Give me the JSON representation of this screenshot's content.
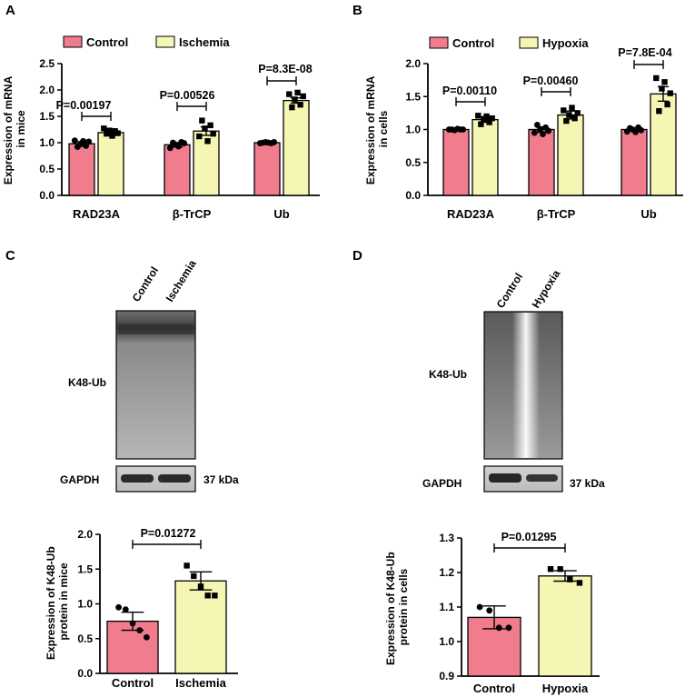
{
  "colors": {
    "control": "#F07C8E",
    "treated_ischemia": "#F5F5B4",
    "treated_hypoxia": "#F5F5B4",
    "axis": "#000000"
  },
  "chart_data": [
    {
      "panel": "A",
      "type": "bar",
      "ylabel_lines": [
        "Expression of mRNA",
        "in mice"
      ],
      "ylim": [
        0,
        2.5
      ],
      "yticks": [
        "0.0",
        "0.5",
        "1.0",
        "1.5",
        "2.0",
        "2.5"
      ],
      "categories": [
        "RAD23A",
        "β-TrCP",
        "Ub"
      ],
      "legend": [
        "Control",
        "Ischemia"
      ],
      "series": [
        {
          "name": "Control",
          "values": [
            0.98,
            0.96,
            1.0
          ],
          "errors": [
            0.04,
            0.04,
            0.01
          ],
          "points": [
            [
              1.04,
              0.92,
              0.97,
              1.03,
              0.94,
              1.02
            ],
            [
              0.9,
              1.0,
              0.96,
              0.93,
              1.01,
              0.99
            ],
            [
              0.99,
              1.0,
              1.01,
              1.0,
              0.99,
              1.01
            ]
          ]
        },
        {
          "name": "Ischemia",
          "values": [
            1.19,
            1.22,
            1.8
          ],
          "errors": [
            0.03,
            0.08,
            0.05
          ],
          "points": [
            [
              1.27,
              1.17,
              1.23,
              1.13,
              1.22,
              1.18
            ],
            [
              1.12,
              1.42,
              1.27,
              1.03,
              1.33,
              1.17
            ],
            [
              1.92,
              1.67,
              1.82,
              1.95,
              1.72,
              1.88
            ]
          ]
        }
      ],
      "pvalues": [
        "P=0.00197",
        "P=0.00526",
        "P=8.3E-08"
      ]
    },
    {
      "panel": "B",
      "type": "bar",
      "ylabel_lines": [
        "Expression of mRNA",
        "in cells"
      ],
      "ylim": [
        0,
        2.0
      ],
      "yticks": [
        "0.0",
        "0.5",
        "1.0",
        "1.5",
        "2.0"
      ],
      "categories": [
        "RAD23A",
        "β-TrCP",
        "Ub"
      ],
      "legend": [
        "Control",
        "Hypoxia"
      ],
      "series": [
        {
          "name": "Control",
          "values": [
            1.0,
            1.0,
            1.0
          ],
          "errors": [
            0.01,
            0.04,
            0.02
          ],
          "points": [
            [
              1.0,
              1.0,
              0.99,
              1.01,
              1.0,
              1.0
            ],
            [
              0.95,
              1.07,
              1.0,
              0.93,
              1.03,
              0.98
            ],
            [
              0.97,
              1.02,
              1.0,
              0.96,
              1.03,
              0.99
            ]
          ]
        },
        {
          "name": "Hypoxia",
          "values": [
            1.15,
            1.22,
            1.54
          ],
          "errors": [
            0.04,
            0.06,
            0.11
          ],
          "points": [
            [
              1.21,
              1.08,
              1.16,
              1.2,
              1.11,
              1.17
            ],
            [
              1.29,
              1.13,
              1.22,
              1.33,
              1.17,
              1.25
            ],
            [
              1.78,
              1.28,
              1.62,
              1.72,
              1.38,
              1.55
            ]
          ]
        }
      ],
      "pvalues": [
        "P=0.00110",
        "P=0.00460",
        "P=7.8E-04"
      ]
    },
    {
      "panel": "C",
      "type": "bar",
      "ylabel_lines": [
        "Expression of K48-Ub",
        "protein in mice"
      ],
      "ylim": [
        0,
        2.0
      ],
      "yticks": [
        "0.0",
        "0.5",
        "1.0",
        "1.5",
        "2.0"
      ],
      "categories": [
        "Control",
        "Ischemia"
      ],
      "values": [
        0.75,
        1.33
      ],
      "errors": [
        0.13,
        0.13
      ],
      "points": [
        [
          0.95,
          0.92,
          0.72,
          0.62,
          0.52
        ],
        [
          1.55,
          1.4,
          1.25,
          1.12,
          1.12
        ]
      ],
      "pvalue": "P=0.01272"
    },
    {
      "panel": "D",
      "type": "bar",
      "ylabel_lines": [
        "Expression of K48-Ub",
        "protein in cells"
      ],
      "ylim": [
        0.9,
        1.3
      ],
      "yticks": [
        "0.9",
        "1.0",
        "1.1",
        "1.2",
        "1.3"
      ],
      "categories": [
        "Control",
        "Hypoxia"
      ],
      "values": [
        1.07,
        1.19
      ],
      "errors": [
        0.033,
        0.015
      ],
      "points": [
        [
          1.1,
          1.09,
          1.04,
          1.04
        ],
        [
          1.21,
          1.21,
          1.18,
          1.17
        ]
      ],
      "pvalue": "P=0.01295"
    }
  ],
  "blots": {
    "C": {
      "lanes": [
        "Control",
        "Ischemia"
      ],
      "main_label": "K48-Ub",
      "loading_label": "GAPDH",
      "size_label": "37 kDa"
    },
    "D": {
      "lanes": [
        "Control",
        "Hypoxia"
      ],
      "main_label": "K48-Ub",
      "loading_label": "GAPDH",
      "size_label": "37 kDa"
    }
  }
}
